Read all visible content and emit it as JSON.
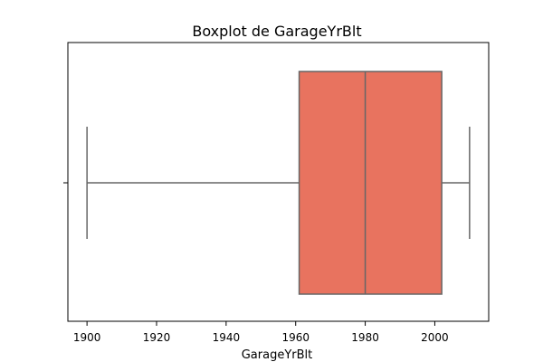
{
  "chart_data": {
    "type": "boxplot",
    "title": "Boxplot de GarageYrBlt",
    "xlabel": "GarageYrBlt",
    "ylabel": "",
    "xlim": [
      1894.5,
      2015.5
    ],
    "x_ticks": [
      1900,
      1920,
      1940,
      1960,
      1980,
      2000
    ],
    "box": {
      "min": 1900,
      "q1": 1961,
      "median": 1980,
      "q3": 2002,
      "max": 2010
    },
    "box_color": "#e8735f",
    "line_color": "#666666",
    "grid": false,
    "legend": "none"
  }
}
